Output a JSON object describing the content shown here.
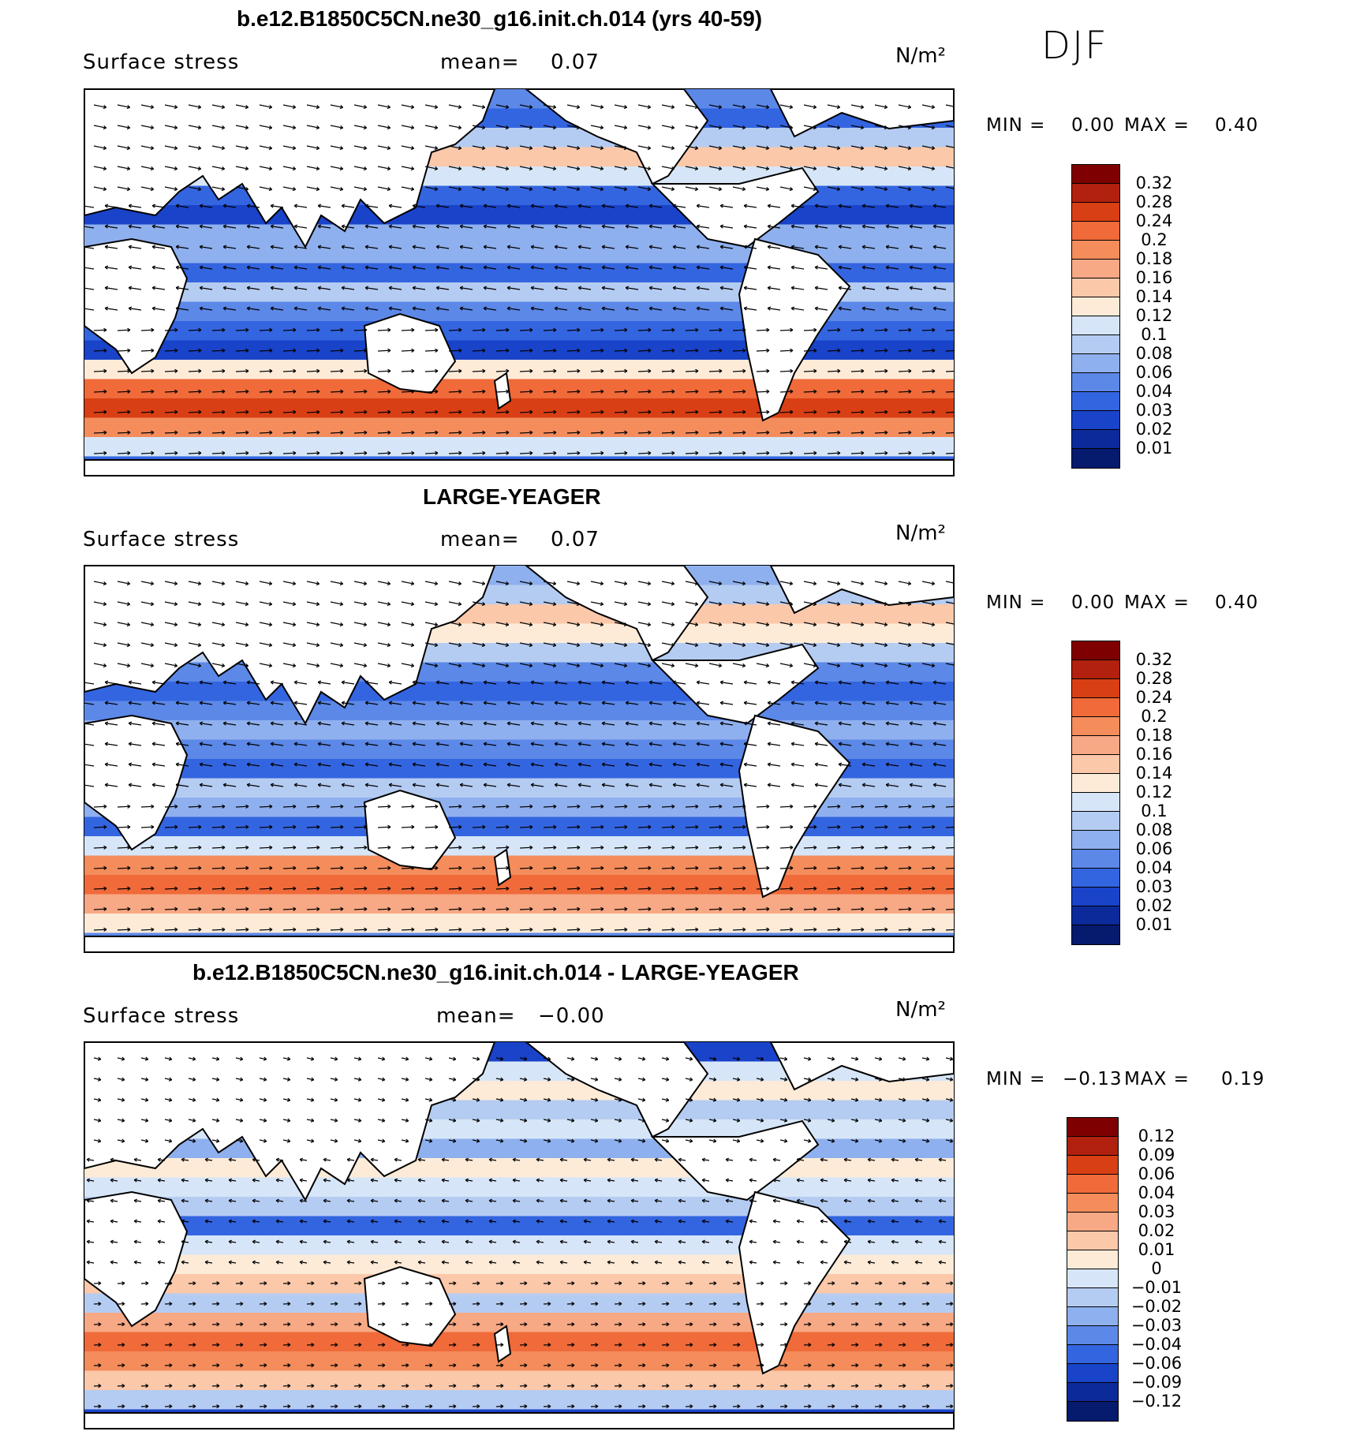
{
  "season": "DJF",
  "chart_data": [
    {
      "type": "heatmap",
      "title": "b.e12.B1850C5CN.ne30_g16.init.ch.014 (yrs 40-59)",
      "variable": "Surface stress",
      "mean_label": "mean=",
      "mean_value": "0.07",
      "units": "N/m²",
      "min_label": "MIN =",
      "min_value": "0.00",
      "max_label": "MAX =",
      "max_value": "0.40",
      "colorbar_levels": [
        "0.32",
        "0.28",
        "0.24",
        "0.2",
        "0.18",
        "0.16",
        "0.14",
        "0.12",
        "0.1",
        "0.08",
        "0.06",
        "0.04",
        "0.03",
        "0.02",
        "0.01"
      ],
      "colorbar_colors": [
        "#7f0000",
        "#b2200f",
        "#d93f14",
        "#f06a3a",
        "#f48c5c",
        "#f7a884",
        "#fbc8aa",
        "#fdebd8",
        "#d6e6f8",
        "#b5ccf2",
        "#8fb0ee",
        "#5c88e8",
        "#3465e0",
        "#1943c8",
        "#0c2a9a",
        "#061a6e"
      ]
    },
    {
      "type": "heatmap",
      "title": "LARGE-YEAGER",
      "variable": "Surface stress",
      "mean_label": "mean=",
      "mean_value": "0.07",
      "units": "N/m²",
      "min_label": "MIN =",
      "min_value": "0.00",
      "max_label": "MAX =",
      "max_value": "0.40",
      "colorbar_levels": [
        "0.32",
        "0.28",
        "0.24",
        "0.2",
        "0.18",
        "0.16",
        "0.14",
        "0.12",
        "0.1",
        "0.08",
        "0.06",
        "0.04",
        "0.03",
        "0.02",
        "0.01"
      ],
      "colorbar_colors": [
        "#7f0000",
        "#b2200f",
        "#d93f14",
        "#f06a3a",
        "#f48c5c",
        "#f7a884",
        "#fbc8aa",
        "#fdebd8",
        "#d6e6f8",
        "#b5ccf2",
        "#8fb0ee",
        "#5c88e8",
        "#3465e0",
        "#1943c8",
        "#0c2a9a",
        "#061a6e"
      ]
    },
    {
      "type": "heatmap",
      "title": "b.e12.B1850C5CN.ne30_g16.init.ch.014 - LARGE-YEAGER",
      "variable": "Surface stress",
      "mean_label": "mean=",
      "mean_value": "−0.00",
      "units": "N/m²",
      "min_label": "MIN =",
      "min_value": "−0.13",
      "max_label": "MAX =",
      "max_value": "0.19",
      "colorbar_levels": [
        "0.12",
        "0.09",
        "0.06",
        "0.04",
        "0.03",
        "0.02",
        "0.01",
        "0",
        "−0.01",
        "−0.02",
        "−0.03",
        "−0.04",
        "−0.06",
        "−0.09",
        "−0.12"
      ],
      "colorbar_colors": [
        "#7f0000",
        "#b2200f",
        "#d93f14",
        "#f06a3a",
        "#f48c5c",
        "#f7a884",
        "#fbc8aa",
        "#fdebd8",
        "#d6e6f8",
        "#b5ccf2",
        "#8fb0ee",
        "#5c88e8",
        "#3465e0",
        "#1943c8",
        "#0c2a9a",
        "#061a6e"
      ]
    }
  ]
}
